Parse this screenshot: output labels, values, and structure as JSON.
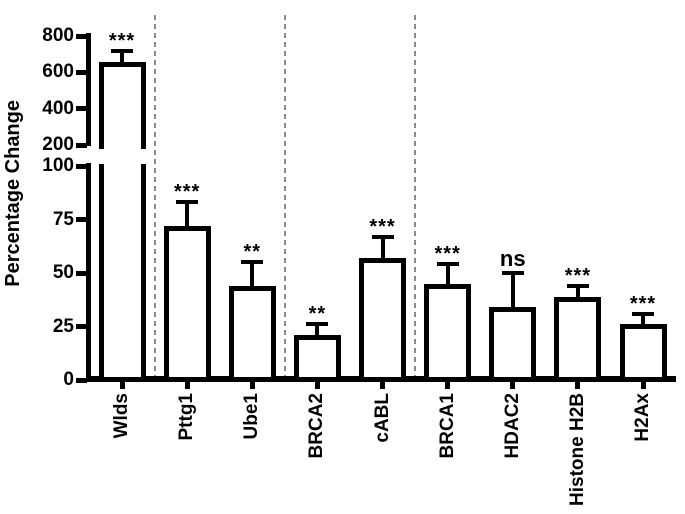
{
  "chart_data": {
    "type": "bar",
    "ylabel": "Percentage Change",
    "categories": [
      "Wlds",
      "Pttg1",
      "Ube1",
      "BRCA2",
      "cABL",
      "BRCA1",
      "HDAC2",
      "Histone H2B",
      "H2Ax"
    ],
    "values": [
      655,
      72,
      44,
      21,
      57,
      45,
      34,
      39,
      26
    ],
    "errors": [
      60,
      11,
      11,
      5,
      10,
      9,
      16,
      5,
      5
    ],
    "significance": [
      "***",
      "***",
      "**",
      "**",
      "***",
      "***",
      "ns",
      "***",
      "***"
    ],
    "y_axis": {
      "broken": true,
      "lower_ticks": [
        0,
        25,
        50,
        75,
        100
      ],
      "upper_ticks": [
        200,
        400,
        600,
        800
      ],
      "lower_range": [
        0,
        100
      ],
      "upper_range": [
        200,
        800
      ]
    },
    "group_separators_after": [
      "Wlds",
      "Ube1",
      "cABL"
    ],
    "legend": null,
    "grid": false,
    "bar_fill": "#ffffff",
    "bar_border": "#000000",
    "separator_color": "#8a8a8a"
  }
}
